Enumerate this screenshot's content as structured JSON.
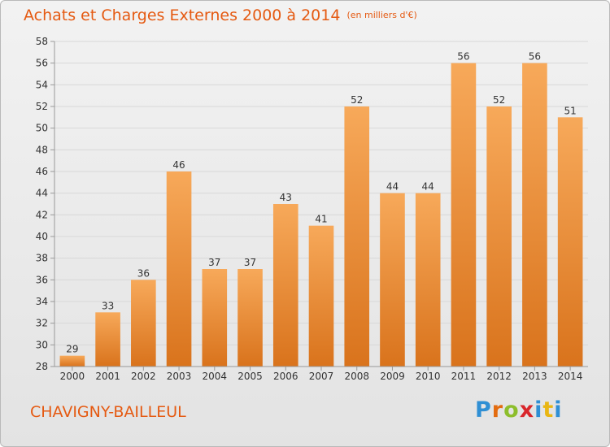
{
  "header": {
    "title": "Achats et Charges Externes 2000 à 2014",
    "unit": "(en milliers d'€)"
  },
  "footer": {
    "commune": "CHAVIGNY-BAILLEUL",
    "logo_letters": [
      "P",
      "r",
      "o",
      "x",
      "i",
      "t",
      "i"
    ],
    "logo_colors": [
      "#2f8fd4",
      "#e36c10",
      "#8dbe2c",
      "#d9262b",
      "#2f8fd4",
      "#e9b613",
      "#2f8fd4"
    ]
  },
  "chart_data": {
    "type": "bar",
    "title": "Achats et Charges Externes 2000 à 2014",
    "categories": [
      "2000",
      "2001",
      "2002",
      "2003",
      "2004",
      "2005",
      "2006",
      "2007",
      "2008",
      "2009",
      "2010",
      "2011",
      "2012",
      "2013",
      "2014"
    ],
    "values": [
      29,
      33,
      36,
      46,
      37,
      37,
      43,
      41,
      52,
      44,
      44,
      56,
      52,
      56,
      51
    ],
    "ylim": [
      28,
      58
    ],
    "yticks": [
      28,
      30,
      32,
      34,
      36,
      38,
      40,
      42,
      44,
      46,
      48,
      50,
      52,
      54,
      56,
      58
    ],
    "grid": true,
    "colors": {
      "bar_light": "#f7a95a",
      "bar_dark": "#d9731c",
      "grid": "#d8d8d8",
      "label": "#333333"
    }
  }
}
